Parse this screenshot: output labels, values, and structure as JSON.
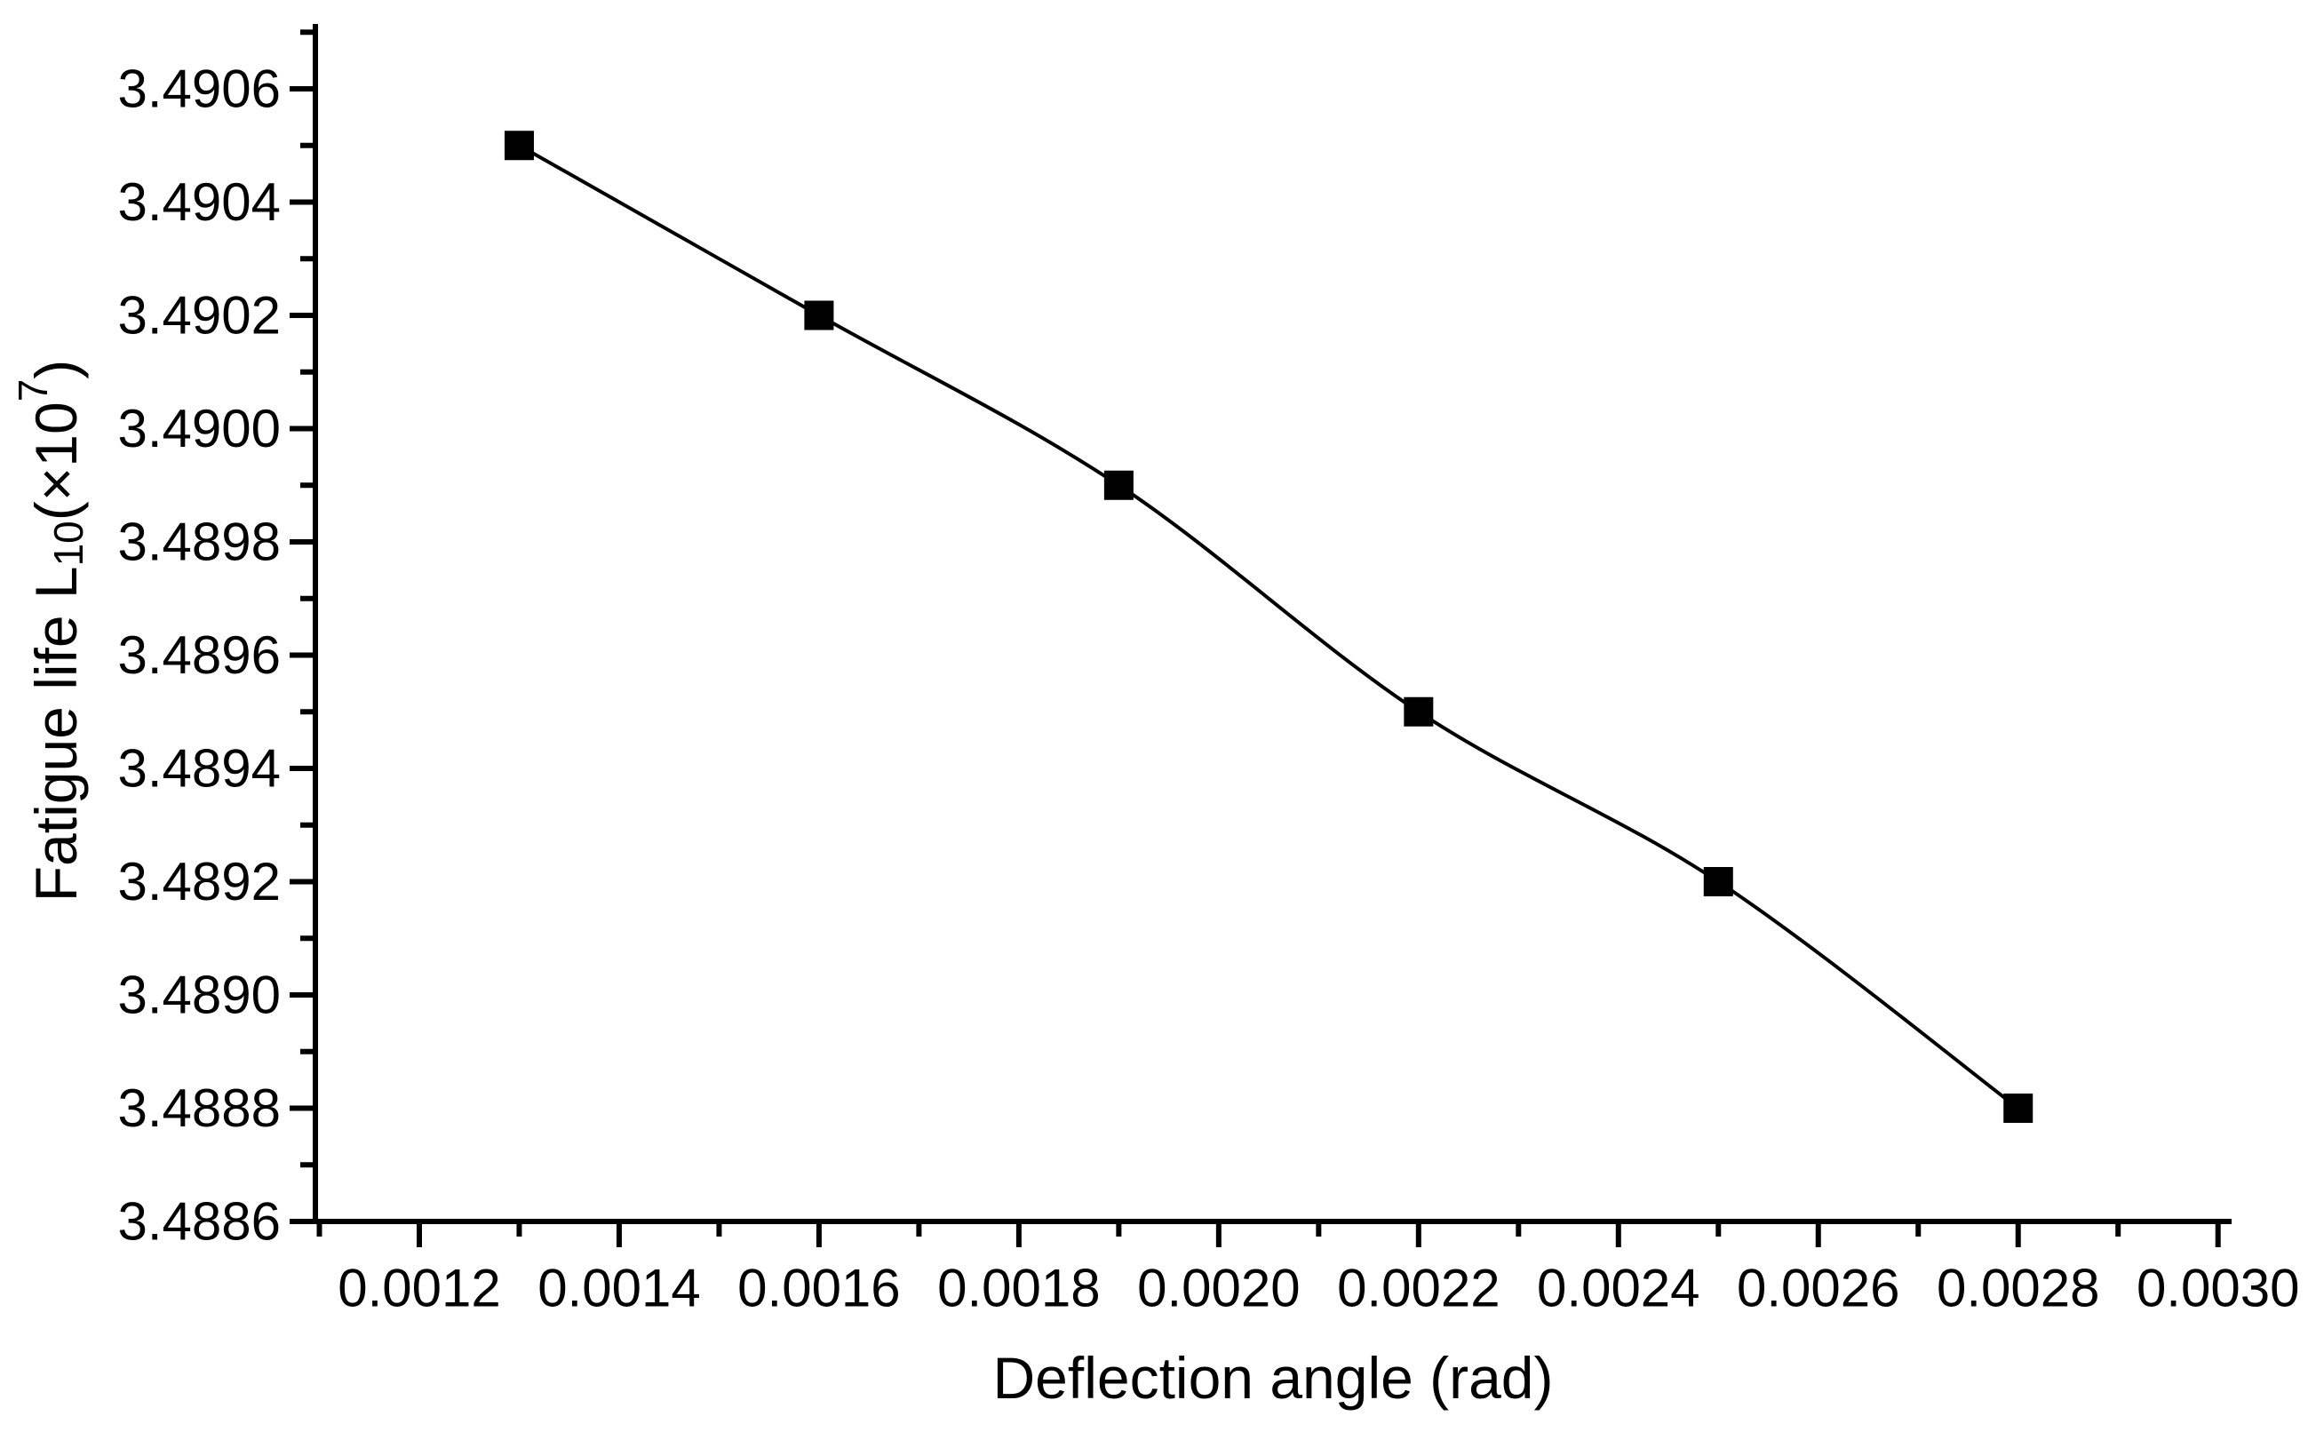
{
  "chart_data": {
    "type": "line",
    "title": "",
    "xlabel": "Deflection angle (rad)",
    "ylabel": "Fatigue life L10(×10^7)",
    "ylabel_rich": [
      {
        "text": "Fatigue life L",
        "style": "normal"
      },
      {
        "text": "10",
        "style": "sub"
      },
      {
        "text": "(×10",
        "style": "normal"
      },
      {
        "text": "7",
        "style": "sup"
      },
      {
        "text": ")",
        "style": "normal"
      }
    ],
    "series": [
      {
        "name": "fatigue-life-vs-deflection-angle",
        "x": [
          0.0013,
          0.0016,
          0.0019,
          0.0022,
          0.0025,
          0.0028
        ],
        "y": [
          3.4905,
          3.4902,
          3.4899,
          3.4895,
          3.4892,
          3.4888
        ],
        "marker": "square",
        "line_style": "smooth"
      }
    ],
    "xlim": [
      0.001096,
      0.0030136
    ],
    "ylim": [
      3.4886,
      3.4907145
    ],
    "xticks": {
      "labels": [
        "0.0012",
        "0.0014",
        "0.0016",
        "0.0018",
        "0.0020",
        "0.0022",
        "0.0024",
        "0.0026",
        "0.0028",
        "0.0030"
      ],
      "minor_step": 0.0001
    },
    "yticks": {
      "labels": [
        "3.4886",
        "3.4888",
        "3.4890",
        "3.4892",
        "3.4894",
        "3.4896",
        "3.4898",
        "3.4900",
        "3.4902",
        "3.4904",
        "3.4906"
      ],
      "minor_step": 0.0001
    },
    "grid": false,
    "legend": false,
    "background": "#ffffff",
    "axis_color": "#000000",
    "line_color": "#000000",
    "marker_color": "#000000"
  }
}
